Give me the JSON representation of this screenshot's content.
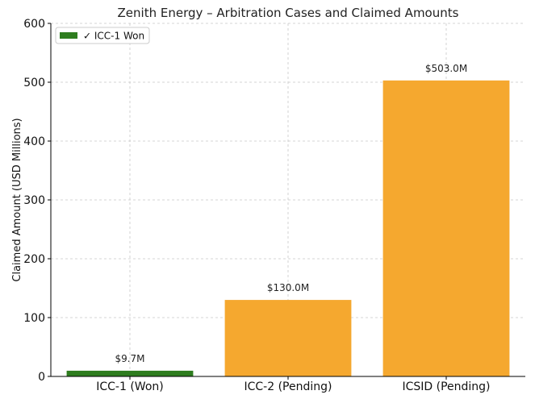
{
  "chart_data": {
    "type": "bar",
    "title": "Zenith Energy – Arbitration Cases and Claimed Amounts",
    "ylabel": "Claimed Amount (USD Millions)",
    "xlabel": "",
    "categories": [
      "ICC-1 (Won)",
      "ICC-2 (Pending)",
      "ICSID (Pending)"
    ],
    "values": [
      9.7,
      130.0,
      503.0
    ],
    "data_labels": [
      "$9.7M",
      "$130.0M",
      "$503.0M"
    ],
    "bar_colors": [
      "#2e7d1f",
      "#f5a82f",
      "#f5a82f"
    ],
    "ylim": [
      0,
      600
    ],
    "yticks": [
      0,
      100,
      200,
      300,
      400,
      500,
      600
    ],
    "grid": true,
    "legend": {
      "placement": "top-left",
      "entries": [
        {
          "label": "✓ ICC-1 Won",
          "color": "#2e7d1f"
        }
      ]
    }
  }
}
